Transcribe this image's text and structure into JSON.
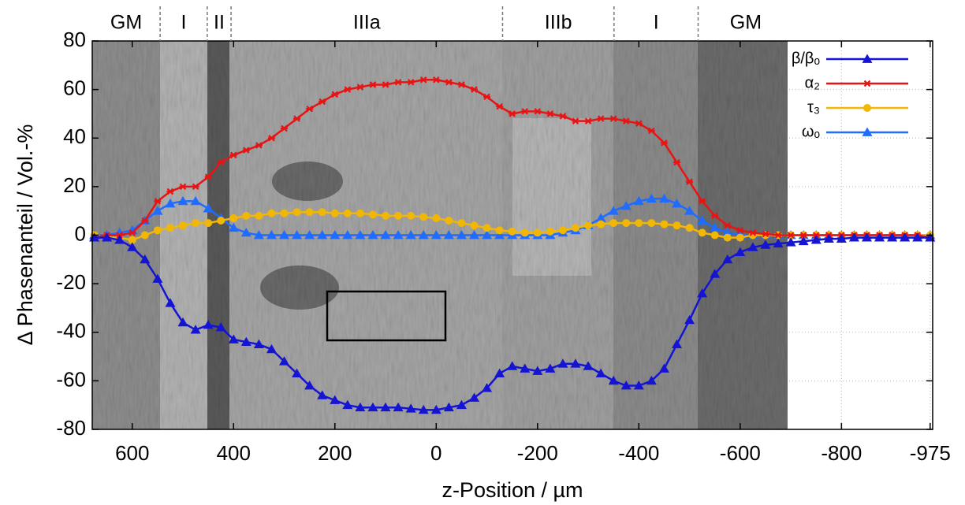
{
  "chart_data": {
    "type": "line",
    "xlabel": "z-Position / µm",
    "ylabel": "Δ Phasenanteil / Vol.-%",
    "xlim": [
      679,
      -980
    ],
    "ylim": [
      -80,
      80
    ],
    "xticks": [
      600,
      400,
      200,
      0,
      -200,
      -400,
      -600,
      -800,
      -975
    ],
    "yticks": [
      -80,
      -60,
      -40,
      -20,
      0,
      20,
      40,
      60,
      80
    ],
    "grid": true,
    "legend_position": "upper right",
    "regions": [
      {
        "label": "GM",
        "range": [
          679,
          545
        ]
      },
      {
        "label": "I",
        "range": [
          545,
          452
        ]
      },
      {
        "label": "II",
        "range": [
          452,
          405
        ]
      },
      {
        "label": "IIIa",
        "range": [
          405,
          -131
        ]
      },
      {
        "label": "IIIb",
        "range": [
          -131,
          -351
        ]
      },
      {
        "label": "I",
        "range": [
          -351,
          -517
        ]
      },
      {
        "label": "GM",
        "range": [
          -517,
          -705
        ]
      }
    ],
    "x": [
      675,
      650,
      625,
      600,
      575,
      550,
      525,
      500,
      475,
      450,
      425,
      400,
      375,
      350,
      325,
      300,
      275,
      250,
      225,
      200,
      175,
      150,
      125,
      100,
      75,
      50,
      25,
      0,
      -25,
      -50,
      -75,
      -100,
      -125,
      -150,
      -175,
      -200,
      -225,
      -250,
      -275,
      -300,
      -325,
      -350,
      -375,
      -400,
      -425,
      -450,
      -475,
      -500,
      -525,
      -550,
      -575,
      -600,
      -625,
      -650,
      -675,
      -700,
      -725,
      -750,
      -775,
      -800,
      -825,
      -850,
      -875,
      -900,
      -925,
      -950,
      -975
    ],
    "series": [
      {
        "name": "β/βₒ",
        "color": "#1414d2",
        "marker": "triangle",
        "values": [
          -1,
          -1,
          -2,
          -5,
          -10,
          -18,
          -28,
          -36,
          -39,
          -37,
          -38,
          -43,
          -44,
          -45,
          -47,
          -52,
          -57,
          -62,
          -66,
          -68,
          -70,
          -71,
          -71,
          -71,
          -71,
          -71.5,
          -72,
          -72,
          -71,
          -70,
          -67,
          -63,
          -57,
          -54,
          -55,
          -56,
          -55,
          -53,
          -53,
          -54,
          -57,
          -60,
          -62,
          -62,
          -60,
          -55,
          -45,
          -35,
          -24,
          -16,
          -10,
          -7,
          -5,
          -4,
          -3.5,
          -3,
          -2.5,
          -2,
          -1.5,
          -1.5,
          -1,
          -1,
          -1,
          -1,
          -1,
          -1,
          -1
        ]
      },
      {
        "name": "α₂",
        "color": "#e81414",
        "marker": "x",
        "values": [
          -1,
          0,
          0,
          1,
          6,
          14,
          18,
          20,
          20,
          24,
          30,
          33,
          35,
          37,
          40,
          44,
          48,
          52,
          55,
          58,
          60,
          61,
          62,
          62,
          63,
          63,
          64,
          64,
          63,
          62,
          60,
          57,
          53,
          50,
          51,
          51,
          50,
          49,
          47,
          47,
          48,
          48,
          47,
          46,
          43,
          38,
          30,
          22,
          14,
          8,
          4,
          2,
          1,
          0.5,
          0,
          0,
          0,
          0,
          0,
          0,
          0,
          0,
          0,
          0,
          0,
          0,
          -1
        ]
      },
      {
        "name": "τ₃",
        "color": "#f2b705",
        "marker": "circle",
        "values": [
          0,
          -1,
          -1,
          -2,
          0,
          2,
          3,
          4,
          5,
          5,
          6,
          7,
          8,
          8,
          9,
          9,
          9.5,
          9.5,
          9.5,
          9,
          9,
          9,
          8.5,
          8,
          8,
          8,
          7.5,
          7,
          6,
          5,
          4,
          3,
          2,
          1.5,
          1,
          1,
          1.5,
          2,
          3,
          4,
          4.5,
          5,
          5,
          5,
          5,
          4.5,
          4,
          3,
          1,
          0,
          -1,
          -1,
          0,
          0,
          0,
          0,
          0,
          0,
          0,
          0,
          0,
          0,
          0,
          0,
          0,
          0,
          0
        ]
      },
      {
        "name": "ωₒ",
        "color": "#1f6cff",
        "marker": "triangle",
        "values": [
          0,
          0,
          1,
          2,
          6,
          10,
          13,
          14,
          14,
          11,
          7,
          3,
          1,
          0,
          0,
          0,
          0,
          0,
          0,
          0,
          0,
          0,
          0,
          0,
          0,
          0,
          0,
          0,
          0,
          0,
          0,
          0,
          0,
          0,
          0,
          0,
          0,
          1,
          2,
          4,
          7,
          10,
          12,
          14,
          15,
          15,
          13,
          10,
          6,
          3,
          1,
          0,
          0,
          0,
          0,
          0,
          0,
          0,
          0,
          0,
          0,
          0,
          0,
          0,
          0,
          0,
          0
        ]
      }
    ]
  }
}
